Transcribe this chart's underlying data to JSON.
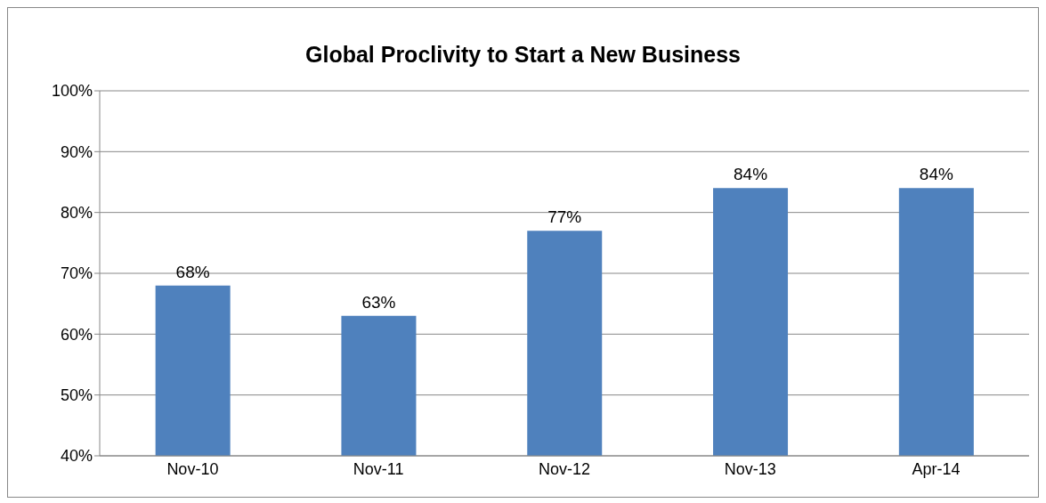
{
  "chart_data": {
    "type": "bar",
    "title": "Global Proclivity to Start a New Business",
    "categories": [
      "Nov-10",
      "Nov-11",
      "Nov-12",
      "Nov-13",
      "Apr-14"
    ],
    "values": [
      68,
      63,
      77,
      84,
      84
    ],
    "value_labels": [
      "68%",
      "63%",
      "77%",
      "84%",
      "84%"
    ],
    "color": "#4f81bd",
    "ylim": [
      40,
      100
    ],
    "yticks": [
      {
        "value": 40,
        "label": "40%"
      },
      {
        "value": 50,
        "label": "50%"
      },
      {
        "value": 60,
        "label": "60%"
      },
      {
        "value": 70,
        "label": "70%"
      },
      {
        "value": 80,
        "label": "80%"
      },
      {
        "value": 90,
        "label": "90%"
      },
      {
        "value": 100,
        "label": "100%"
      }
    ],
    "grid": "y",
    "legend": false
  }
}
